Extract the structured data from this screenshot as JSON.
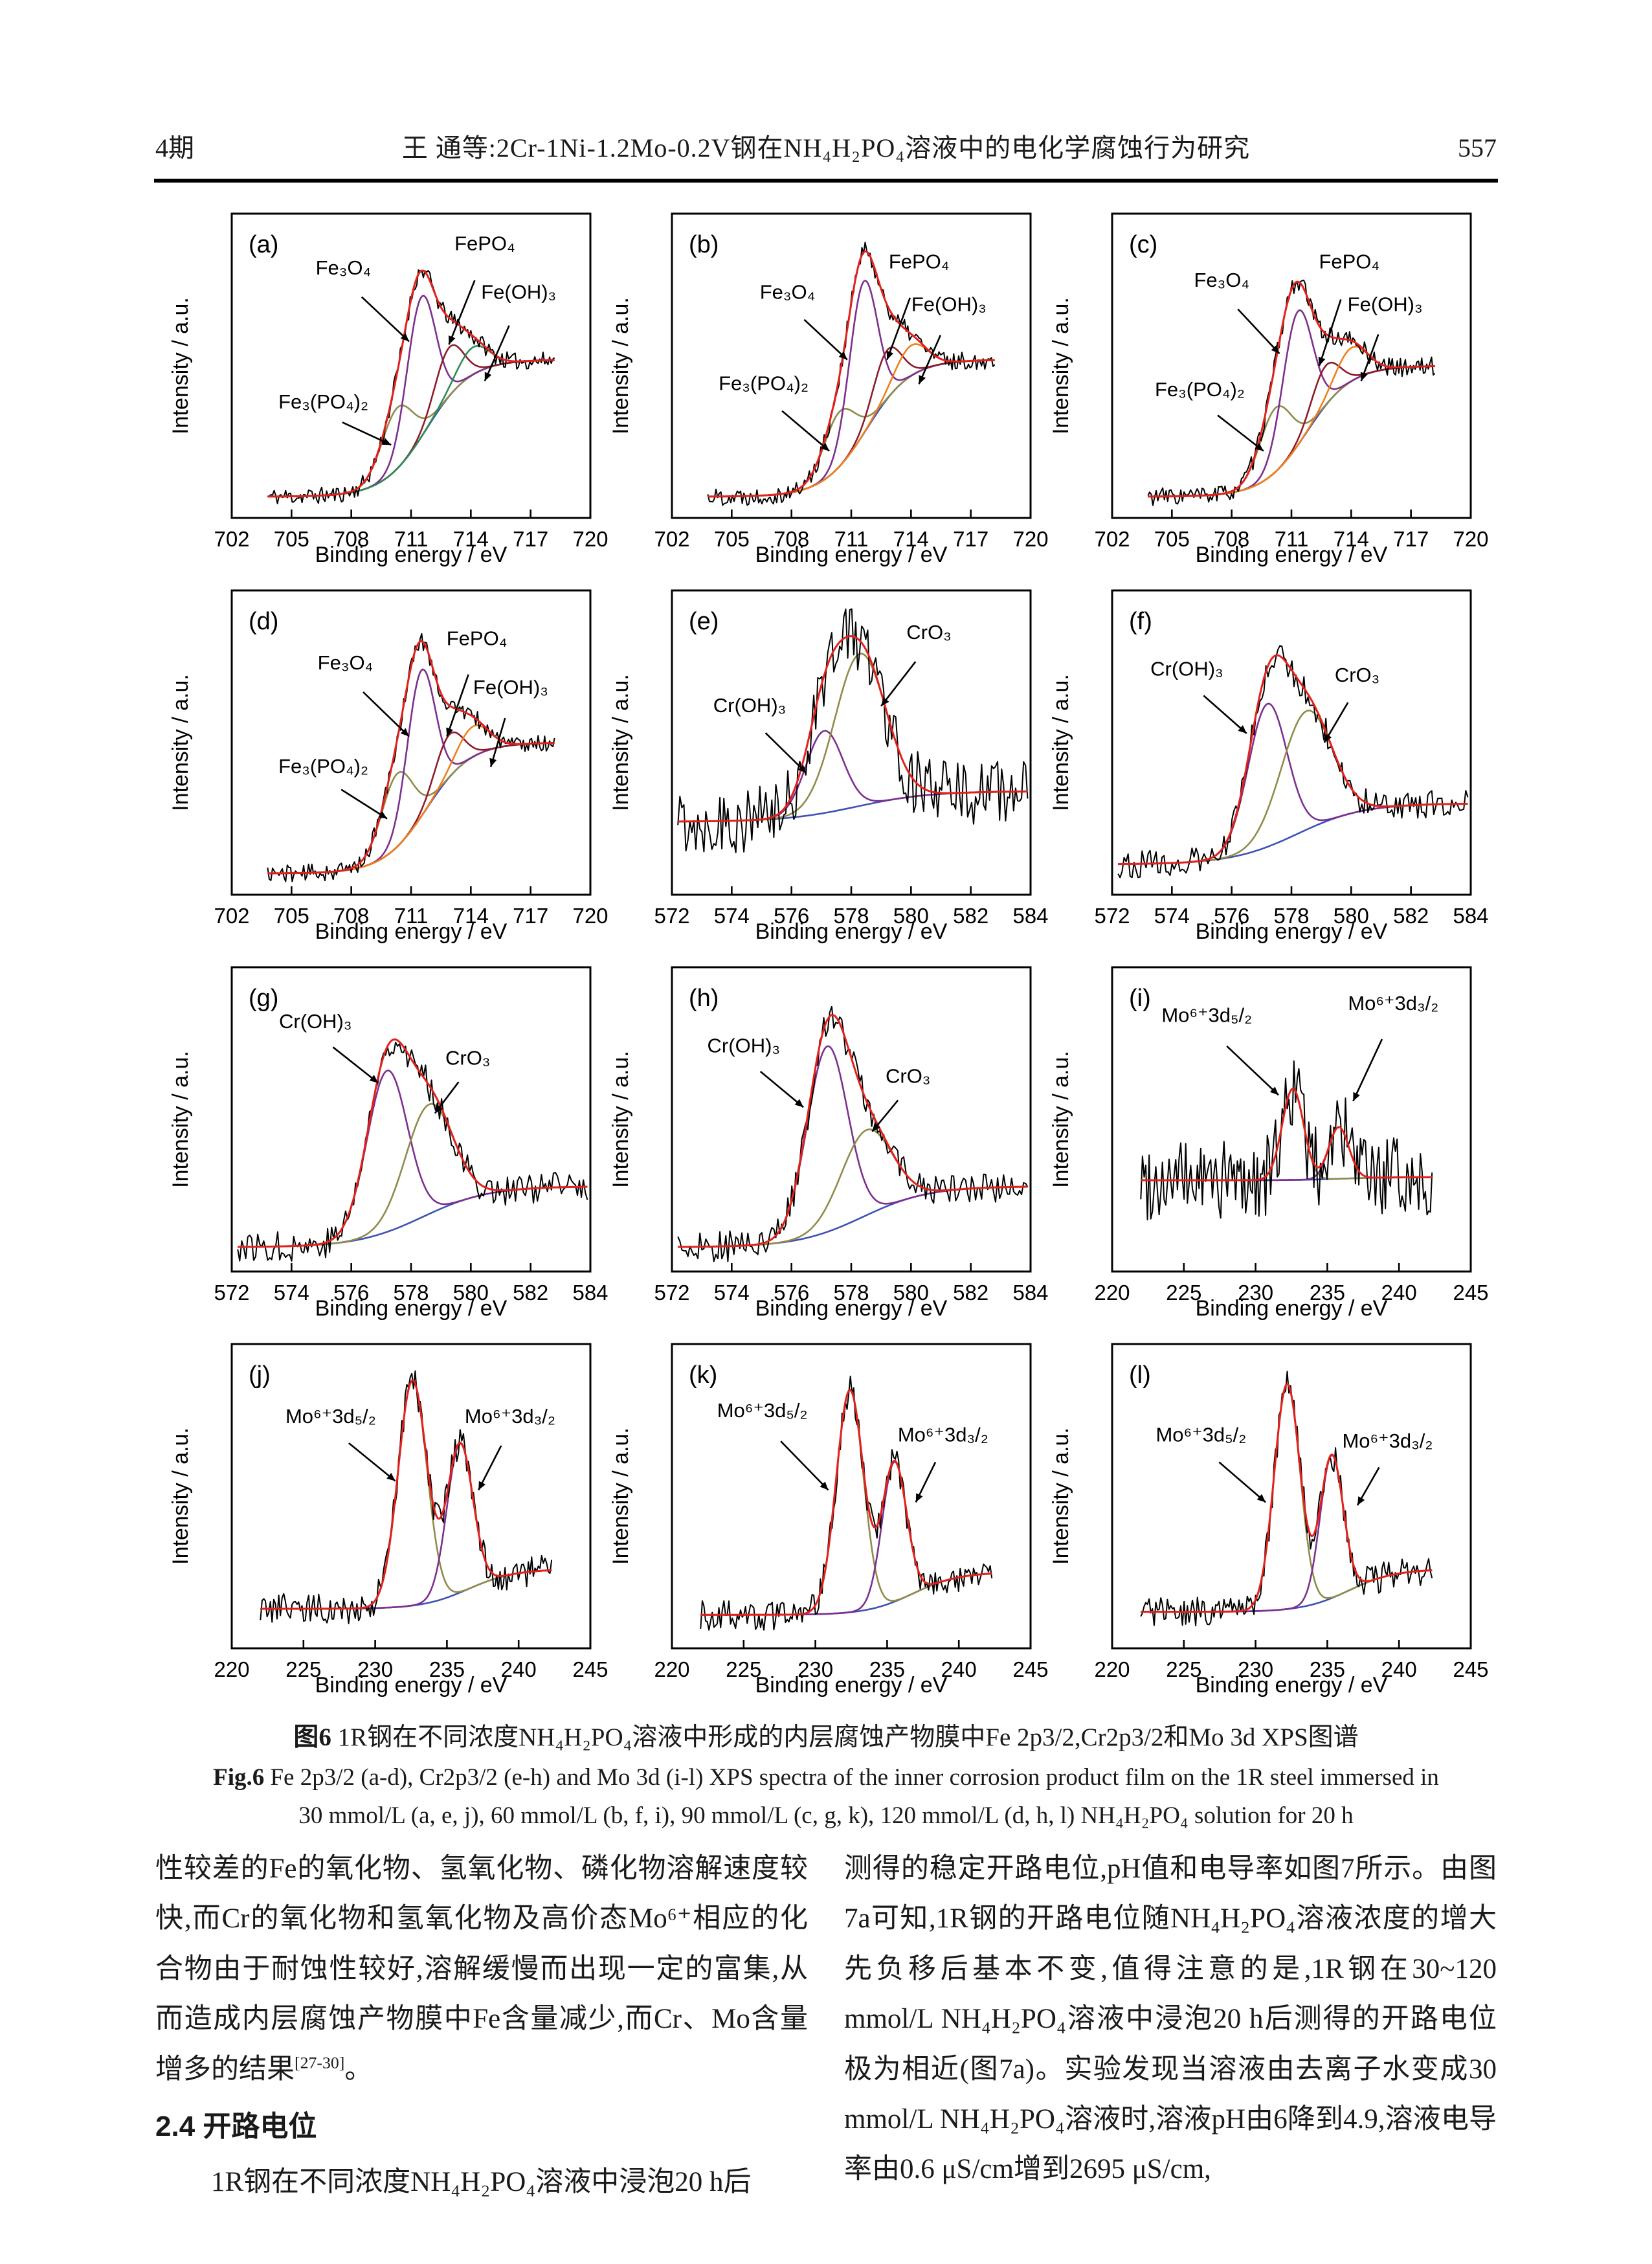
{
  "header": {
    "issue": "4期",
    "title": "王 通等:2Cr-1Ni-1.2Mo-0.2V钢在NH₄H₂PO₄溶液中的电化学腐蚀行为研究",
    "page_number": "557"
  },
  "caption": {
    "zh_prefix": "图6",
    "zh_text": " 1R钢在不同浓度NH₄H₂PO₄溶液中形成的内层腐蚀产物膜中Fe 2p3/2,Cr2p3/2和Mo 3d XPS图谱",
    "en_prefix": "Fig.6",
    "en_line1": " Fe 2p3/2 (a-d), Cr2p3/2 (e-h) and Mo 3d (i-l) XPS spectra of the inner corrosion product film on the 1R steel immersed in",
    "en_line2": "30 mmol/L (a, e, j), 60 mmol/L (b, f, i), 90 mmol/L (c, g, k), 120 mmol/L (d, h, l) NH₄H₂PO₄ solution for 20 h"
  },
  "body": {
    "left_par1": "性较差的Fe的氧化物、氢氧化物、磷化物溶解速度较快,而Cr的氧化物和氢氧化物及高价态Mo⁶⁺相应的化合物由于耐蚀性较好,溶解缓慢而出现一定的富集,从而造成内层腐蚀产物膜中Fe含量减少,而Cr、Mo含量增多的结果",
    "left_par1_sup": "[27-30]",
    "left_par1_end": "。",
    "left_heading": "2.4 开路电位",
    "left_par2": "1R钢在不同浓度NH₄H₂PO₄溶液中浸泡20 h后",
    "right_par": "测得的稳定开路电位,pH值和电导率如图7所示。由图7a可知,1R钢的开路电位随NH₄H₂PO₄溶液浓度的增大先负移后基本不变,值得注意的是,1R钢在30~120 mmol/L NH₄H₂PO₄溶液中浸泡20 h后测得的开路电位极为相近(图7a)。实验发现当溶液由去离子水变成30 mmol/L NH₄H₂PO₄溶液时,溶液pH由6降到4.9,溶液电导率由0.6 μS/cm增到2695 μS/cm,"
  },
  "axes": {
    "xlabel": "Binding energy / eV",
    "ylabel": "Intensity / a.u."
  },
  "colors": {
    "envelope": "#e3211c",
    "data": "#000000",
    "baseline": "#3f51b5",
    "purple": "#7d2f8d",
    "darkred": "#8e1b28",
    "olive": "#8f8b4a",
    "green": "#2e8b57",
    "orange": "#ef7f1a"
  },
  "chart_data": [
    {
      "id": "a",
      "type": "line",
      "element": "Fe 2p3/2",
      "xlim": [
        702,
        720
      ],
      "xticks": [
        702,
        705,
        708,
        711,
        714,
        717,
        720
      ],
      "xdata": [
        703.8,
        718.2
      ],
      "baseline": {
        "color": "#3f51b5",
        "b0": 0.07,
        "b1": 0.52,
        "center": 711.8,
        "width": 1.1
      },
      "peaks": [
        {
          "name": "Fe₃(PO₄)₂",
          "color": "#8f8b4a",
          "center": 710.3,
          "sigma": 0.8,
          "amp": 0.2
        },
        {
          "name": "Fe₃O₄",
          "color": "#7d2f8d",
          "center": 711.5,
          "sigma": 0.72,
          "amp": 0.46
        },
        {
          "name": "FePO₄",
          "color": "#8e1b28",
          "center": 712.9,
          "sigma": 0.7,
          "amp": 0.16
        },
        {
          "name": "Fe(OH)₃",
          "color": "#2e8b57",
          "center": 714.1,
          "sigma": 0.8,
          "amp": 0.09
        }
      ],
      "noise": 0.028,
      "seed": 11,
      "annotations": [
        {
          "text": "Fe₃O₄",
          "tx": 707.6,
          "ty": 0.8,
          "ax": 710.9,
          "ay": 0.58
        },
        {
          "text": "FePO₄",
          "tx": 714.7,
          "ty": 0.88,
          "ax": 712.9,
          "ay": 0.57
        },
        {
          "text": "Fe(OH)₃",
          "tx": 716.4,
          "ty": 0.72,
          "ax": 714.7,
          "ay": 0.45
        },
        {
          "text": "Fe₃(PO₄)₂",
          "tx": 706.6,
          "ty": 0.36,
          "ax": 710.0,
          "ay": 0.24
        }
      ]
    },
    {
      "id": "b",
      "type": "line",
      "element": "Fe 2p3/2",
      "xlim": [
        702,
        720
      ],
      "xticks": [
        702,
        705,
        708,
        711,
        714,
        717,
        720
      ],
      "xdata": [
        703.8,
        718.2
      ],
      "baseline": {
        "color": "#3f51b5",
        "b0": 0.07,
        "b1": 0.52,
        "center": 711.8,
        "width": 1.1
      },
      "peaks": [
        {
          "name": "Fe₃(PO₄)₂",
          "color": "#8f8b4a",
          "center": 710.4,
          "sigma": 0.8,
          "amp": 0.18
        },
        {
          "name": "Fe₃O₄",
          "color": "#7d2f8d",
          "center": 711.6,
          "sigma": 0.7,
          "amp": 0.5
        },
        {
          "name": "FePO₄",
          "color": "#8e1b28",
          "center": 712.8,
          "sigma": 0.7,
          "amp": 0.16
        },
        {
          "name": "Fe(OH)₃",
          "color": "#ef7f1a",
          "center": 714.0,
          "sigma": 0.8,
          "amp": 0.1
        }
      ],
      "noise": 0.03,
      "seed": 22,
      "annotations": [
        {
          "text": "Fe₃O₄",
          "tx": 707.8,
          "ty": 0.72,
          "ax": 710.8,
          "ay": 0.52
        },
        {
          "text": "FePO₄",
          "tx": 714.4,
          "ty": 0.82,
          "ax": 712.8,
          "ay": 0.52
        },
        {
          "text": "Fe(OH)₃",
          "tx": 715.9,
          "ty": 0.68,
          "ax": 714.4,
          "ay": 0.44
        },
        {
          "text": "Fe₃(PO₄)₂",
          "tx": 706.6,
          "ty": 0.42,
          "ax": 709.9,
          "ay": 0.22
        }
      ]
    },
    {
      "id": "c",
      "type": "line",
      "element": "Fe 2p3/2",
      "xlim": [
        702,
        720
      ],
      "xticks": [
        702,
        705,
        708,
        711,
        714,
        717,
        720
      ],
      "xdata": [
        703.8,
        718.2
      ],
      "baseline": {
        "color": "#3f51b5",
        "b0": 0.07,
        "b1": 0.5,
        "center": 711.8,
        "width": 1.1
      },
      "peaks": [
        {
          "name": "Fe₃(PO₄)₂",
          "color": "#8f8b4a",
          "center": 710.2,
          "sigma": 0.8,
          "amp": 0.21
        },
        {
          "name": "Fe₃O₄",
          "color": "#7d2f8d",
          "center": 711.3,
          "sigma": 0.75,
          "amp": 0.44
        },
        {
          "name": "FePO₄",
          "color": "#8e1b28",
          "center": 712.7,
          "sigma": 0.7,
          "amp": 0.13
        },
        {
          "name": "Fe(OH)₃",
          "color": "#ef7f1a",
          "center": 714.0,
          "sigma": 0.8,
          "amp": 0.11
        }
      ],
      "noise": 0.03,
      "seed": 33,
      "annotations": [
        {
          "text": "Fe₃O₄",
          "tx": 707.5,
          "ty": 0.76,
          "ax": 710.4,
          "ay": 0.54
        },
        {
          "text": "FePO₄",
          "tx": 713.9,
          "ty": 0.82,
          "ax": 712.4,
          "ay": 0.5
        },
        {
          "text": "Fe(OH)₃",
          "tx": 715.7,
          "ty": 0.68,
          "ax": 714.5,
          "ay": 0.45
        },
        {
          "text": "Fe₃(PO₄)₂",
          "tx": 706.4,
          "ty": 0.4,
          "ax": 709.6,
          "ay": 0.22
        }
      ]
    },
    {
      "id": "d",
      "type": "line",
      "element": "Fe 2p3/2",
      "xlim": [
        702,
        720
      ],
      "xticks": [
        702,
        705,
        708,
        711,
        714,
        717,
        720
      ],
      "xdata": [
        703.8,
        718.2
      ],
      "baseline": {
        "color": "#3f51b5",
        "b0": 0.07,
        "b1": 0.5,
        "center": 711.8,
        "width": 1.1
      },
      "peaks": [
        {
          "name": "Fe₃(PO₄)₂",
          "color": "#8f8b4a",
          "center": 710.3,
          "sigma": 0.8,
          "amp": 0.24
        },
        {
          "name": "Fe₃O₄",
          "color": "#7d2f8d",
          "center": 711.5,
          "sigma": 0.7,
          "amp": 0.48
        },
        {
          "name": "FePO₄",
          "color": "#8e1b28",
          "center": 712.9,
          "sigma": 0.7,
          "amp": 0.14
        },
        {
          "name": "Fe(OH)₃",
          "color": "#ef7f1a",
          "center": 714.1,
          "sigma": 0.8,
          "amp": 0.1
        }
      ],
      "noise": 0.028,
      "seed": 44,
      "annotations": [
        {
          "text": "Fe₃O₄",
          "tx": 707.7,
          "ty": 0.74,
          "ax": 710.9,
          "ay": 0.52
        },
        {
          "text": "FePO₄",
          "tx": 714.3,
          "ty": 0.82,
          "ax": 712.8,
          "ay": 0.52
        },
        {
          "text": "Fe(OH)₃",
          "tx": 716.0,
          "ty": 0.66,
          "ax": 715.0,
          "ay": 0.42
        },
        {
          "text": "Fe₃(PO₄)₂",
          "tx": 706.6,
          "ty": 0.4,
          "ax": 709.8,
          "ay": 0.25
        }
      ]
    },
    {
      "id": "e",
      "type": "line",
      "element": "Cr 2p3/2",
      "xlim": [
        572,
        584
      ],
      "xticks": [
        572,
        574,
        576,
        578,
        580,
        582,
        584
      ],
      "xdata": [
        572.2,
        583.9
      ],
      "baseline": {
        "color": "#3f51b5",
        "b0": 0.24,
        "b1": 0.34,
        "center": 578.2,
        "width": 1.2
      },
      "peaks": [
        {
          "name": "Cr(OH)₃",
          "color": "#7d2f8d",
          "center": 577.1,
          "sigma": 0.62,
          "amp": 0.27
        },
        {
          "name": "CrO₃",
          "color": "#8f8b4a",
          "center": 578.3,
          "sigma": 0.85,
          "amp": 0.5
        }
      ],
      "noise": 0.11,
      "seed": 55,
      "annotations": [
        {
          "text": "Cr(OH)₃",
          "tx": 574.6,
          "ty": 0.6,
          "ax": 576.5,
          "ay": 0.4
        },
        {
          "text": "CrO₃",
          "tx": 580.6,
          "ty": 0.84,
          "ax": 579.0,
          "ay": 0.62
        }
      ]
    },
    {
      "id": "f",
      "type": "line",
      "element": "Cr 2p3/2",
      "xlim": [
        572,
        584
      ],
      "xticks": [
        572,
        574,
        576,
        578,
        580,
        582,
        584
      ],
      "xdata": [
        572.2,
        583.9
      ],
      "baseline": {
        "color": "#3f51b5",
        "b0": 0.1,
        "b1": 0.3,
        "center": 578.2,
        "width": 1.1
      },
      "peaks": [
        {
          "name": "Cr(OH)₃",
          "color": "#7d2f8d",
          "center": 577.2,
          "sigma": 0.65,
          "amp": 0.47
        },
        {
          "name": "CrO₃",
          "color": "#8f8b4a",
          "center": 578.5,
          "sigma": 0.85,
          "amp": 0.39
        }
      ],
      "noise": 0.045,
      "seed": 66,
      "annotations": [
        {
          "text": "Cr(OH)₃",
          "tx": 574.5,
          "ty": 0.72,
          "ax": 576.5,
          "ay": 0.53
        },
        {
          "text": "CrO₃",
          "tx": 580.2,
          "ty": 0.7,
          "ax": 579.1,
          "ay": 0.5
        }
      ]
    },
    {
      "id": "g",
      "type": "line",
      "element": "Cr 2p3/2",
      "xlim": [
        572,
        584
      ],
      "xticks": [
        572,
        574,
        576,
        578,
        580,
        582,
        584
      ],
      "xdata": [
        572.2,
        583.9
      ],
      "baseline": {
        "color": "#3f51b5",
        "b0": 0.08,
        "b1": 0.28,
        "center": 578.4,
        "width": 1.1
      },
      "peaks": [
        {
          "name": "Cr(OH)₃",
          "color": "#7d2f8d",
          "center": 577.2,
          "sigma": 0.68,
          "amp": 0.53
        },
        {
          "name": "CrO₃",
          "color": "#8f8b4a",
          "center": 578.6,
          "sigma": 0.8,
          "amp": 0.36
        }
      ],
      "noise": 0.05,
      "seed": 77,
      "annotations": [
        {
          "text": "Cr(OH)₃",
          "tx": 574.8,
          "ty": 0.8,
          "ax": 576.9,
          "ay": 0.62
        },
        {
          "text": "CrO₃",
          "tx": 579.9,
          "ty": 0.68,
          "ax": 578.8,
          "ay": 0.52
        }
      ]
    },
    {
      "id": "h",
      "type": "line",
      "element": "Cr 2p3/2",
      "xlim": [
        572,
        584
      ],
      "xticks": [
        572,
        574,
        576,
        578,
        580,
        582,
        584
      ],
      "xdata": [
        572.2,
        583.9
      ],
      "baseline": {
        "color": "#3f51b5",
        "b0": 0.08,
        "b1": 0.28,
        "center": 578.4,
        "width": 1.1
      },
      "peaks": [
        {
          "name": "Cr(OH)₃",
          "color": "#7d2f8d",
          "center": 577.2,
          "sigma": 0.68,
          "amp": 0.61
        },
        {
          "name": "CrO₃",
          "color": "#8f8b4a",
          "center": 578.5,
          "sigma": 0.85,
          "amp": 0.28
        }
      ],
      "noise": 0.05,
      "seed": 88,
      "annotations": [
        {
          "text": "Cr(OH)₃",
          "tx": 574.4,
          "ty": 0.72,
          "ax": 576.4,
          "ay": 0.54
        },
        {
          "text": "CrO₃",
          "tx": 579.9,
          "ty": 0.62,
          "ax": 578.7,
          "ay": 0.46
        }
      ]
    },
    {
      "id": "i",
      "type": "line",
      "element": "Mo 3d",
      "xlim": [
        220,
        245
      ],
      "xticks": [
        220,
        225,
        230,
        235,
        240,
        245
      ],
      "xdata": [
        222,
        242.3
      ],
      "baseline": {
        "color": "#3f51b5",
        "b0": 0.3,
        "b1": 0.31,
        "center": 236.0,
        "width": 1.5
      },
      "peaks": [
        {
          "name": "Mo⁶⁺3d₅/₂",
          "color": "#8f8b4a",
          "center": 232.6,
          "sigma": 0.75,
          "amp": 0.3
        },
        {
          "name": "Mo⁶⁺3d₃/₂",
          "color": "#7d2f8d",
          "center": 235.8,
          "sigma": 0.7,
          "amp": 0.17
        }
      ],
      "noise": 0.13,
      "seed": 99,
      "annotations": [
        {
          "text": "Mo⁶⁺3d₅/₂",
          "tx": 226.6,
          "ty": 0.82,
          "ax": 231.6,
          "ay": 0.58
        },
        {
          "text": "Mo⁶⁺3d₃/₂",
          "tx": 239.6,
          "ty": 0.86,
          "ax": 236.8,
          "ay": 0.56
        }
      ]
    },
    {
      "id": "j",
      "type": "line",
      "element": "Mo 3d",
      "xlim": [
        220,
        245
      ],
      "xticks": [
        220,
        225,
        230,
        235,
        240,
        245
      ],
      "xdata": [
        222,
        242.3
      ],
      "baseline": {
        "color": "#3f51b5",
        "b0": 0.13,
        "b1": 0.26,
        "center": 236.5,
        "width": 1.6
      },
      "peaks": [
        {
          "name": "Mo⁶⁺3d₅/₂",
          "color": "#8f8b4a",
          "center": 232.6,
          "sigma": 1.0,
          "amp": 0.74
        },
        {
          "name": "Mo⁶⁺3d₃/₂",
          "color": "#7d2f8d",
          "center": 235.9,
          "sigma": 0.9,
          "amp": 0.49
        }
      ],
      "noise": 0.05,
      "seed": 110,
      "annotations": [
        {
          "text": "Mo⁶⁺3d₅/₂",
          "tx": 226.9,
          "ty": 0.74,
          "ax": 231.4,
          "ay": 0.55
        },
        {
          "text": "Mo⁶⁺3d₃/₂",
          "tx": 239.4,
          "ty": 0.74,
          "ax": 237.2,
          "ay": 0.52
        }
      ]
    },
    {
      "id": "k",
      "type": "line",
      "element": "Mo 3d",
      "xlim": [
        220,
        245
      ],
      "xticks": [
        220,
        225,
        230,
        235,
        240,
        245
      ],
      "xdata": [
        222,
        242.3
      ],
      "baseline": {
        "color": "#3f51b5",
        "b0": 0.11,
        "b1": 0.25,
        "center": 236.8,
        "width": 1.6
      },
      "peaks": [
        {
          "name": "Mo⁶⁺3d₅/₂",
          "color": "#8f8b4a",
          "center": 232.4,
          "sigma": 0.95,
          "amp": 0.73
        },
        {
          "name": "Mo⁶⁺3d₃/₂",
          "color": "#7d2f8d",
          "center": 235.5,
          "sigma": 0.85,
          "amp": 0.46
        }
      ],
      "noise": 0.05,
      "seed": 121,
      "annotations": [
        {
          "text": "Mo⁶⁺3d₅/₂",
          "tx": 226.3,
          "ty": 0.76,
          "ax": 230.9,
          "ay": 0.52
        },
        {
          "text": "Mo⁶⁺3d₃/₂",
          "tx": 238.9,
          "ty": 0.68,
          "ax": 237.0,
          "ay": 0.48
        }
      ]
    },
    {
      "id": "l",
      "type": "line",
      "element": "Mo 3d",
      "xlim": [
        220,
        245
      ],
      "xticks": [
        220,
        225,
        230,
        235,
        240,
        245
      ],
      "xdata": [
        222,
        242.3
      ],
      "baseline": {
        "color": "#3f51b5",
        "b0": 0.12,
        "b1": 0.26,
        "center": 236.5,
        "width": 1.6
      },
      "peaks": [
        {
          "name": "Mo⁶⁺3d₅/₂",
          "color": "#8f8b4a",
          "center": 232.2,
          "sigma": 0.9,
          "amp": 0.74
        },
        {
          "name": "Mo⁶⁺3d₃/₂",
          "color": "#7d2f8d",
          "center": 235.3,
          "sigma": 0.8,
          "amp": 0.47
        }
      ],
      "noise": 0.05,
      "seed": 132,
      "annotations": [
        {
          "text": "Mo⁶⁺3d₅/₂",
          "tx": 226.2,
          "ty": 0.68,
          "ax": 230.7,
          "ay": 0.48
        },
        {
          "text": "Mo⁶⁺3d₃/₂",
          "tx": 239.2,
          "ty": 0.66,
          "ax": 237.1,
          "ay": 0.47
        }
      ]
    }
  ]
}
